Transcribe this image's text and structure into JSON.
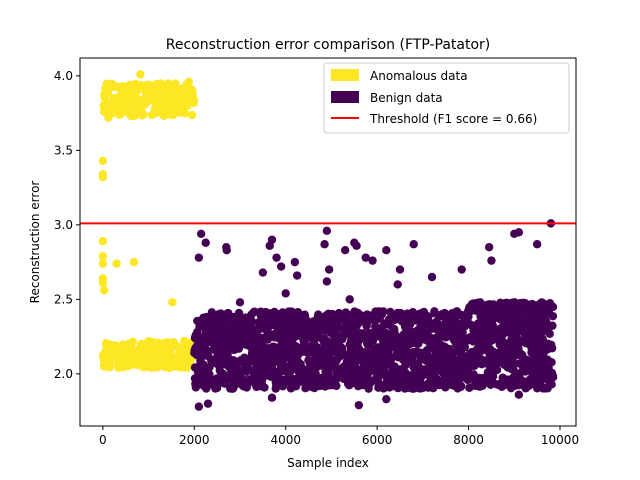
{
  "chart_data": {
    "type": "scatter",
    "title": "Reconstruction error comparison (FTP-Patator)",
    "xlabel": "Sample index",
    "ylabel": "Reconstruction error",
    "xlim": [
      -500,
      10350
    ],
    "ylim": [
      1.65,
      4.12
    ],
    "xticks": [
      0,
      2000,
      4000,
      6000,
      8000,
      10000
    ],
    "xtick_labels": [
      "0",
      "2000",
      "4000",
      "6000",
      "8000",
      "10000"
    ],
    "yticks": [
      2.0,
      2.5,
      3.0,
      3.5,
      4.0
    ],
    "ytick_labels": [
      "2.0",
      "2.5",
      "3.0",
      "3.5",
      "4.0"
    ],
    "grid": false,
    "legend_position": "top-right",
    "series": [
      {
        "name": "Anomalous data",
        "color": "#fde725",
        "clusters": [
          {
            "x_range": [
              0,
              2000
            ],
            "y_range": [
              3.73,
              3.95
            ],
            "count": 220
          },
          {
            "x_range": [
              0,
              2000
            ],
            "y_range": [
              2.04,
              2.22
            ],
            "count": 240
          }
        ],
        "points": [
          {
            "x": 0,
            "y": 3.43
          },
          {
            "x": 0,
            "y": 3.34
          },
          {
            "x": 0,
            "y": 3.32
          },
          {
            "x": 0,
            "y": 2.89
          },
          {
            "x": 0,
            "y": 2.79
          },
          {
            "x": 0,
            "y": 2.74
          },
          {
            "x": 0,
            "y": 2.64
          },
          {
            "x": 0,
            "y": 2.61
          },
          {
            "x": 30,
            "y": 2.56
          },
          {
            "x": 300,
            "y": 2.74
          },
          {
            "x": 680,
            "y": 2.75
          },
          {
            "x": 1520,
            "y": 2.48
          },
          {
            "x": 820,
            "y": 4.01
          },
          {
            "x": 1880,
            "y": 3.96
          },
          {
            "x": 120,
            "y": 3.72
          }
        ]
      },
      {
        "name": "Benign data",
        "color": "#440154",
        "clusters": [
          {
            "x_range": [
              2000,
              9850
            ],
            "y_range": [
              1.9,
              2.42
            ],
            "count": 1800
          },
          {
            "x_range": [
              8000,
              9850
            ],
            "y_range": [
              2.42,
              2.48
            ],
            "count": 120
          }
        ],
        "points": [
          {
            "x": 2150,
            "y": 2.94
          },
          {
            "x": 2250,
            "y": 2.88
          },
          {
            "x": 2100,
            "y": 2.78
          },
          {
            "x": 2700,
            "y": 2.85
          },
          {
            "x": 2710,
            "y": 2.83
          },
          {
            "x": 3500,
            "y": 2.68
          },
          {
            "x": 3650,
            "y": 2.86
          },
          {
            "x": 3700,
            "y": 2.9
          },
          {
            "x": 3800,
            "y": 2.78
          },
          {
            "x": 3900,
            "y": 2.72
          },
          {
            "x": 4250,
            "y": 2.66
          },
          {
            "x": 4200,
            "y": 2.75
          },
          {
            "x": 4900,
            "y": 2.96
          },
          {
            "x": 4850,
            "y": 2.87
          },
          {
            "x": 4950,
            "y": 2.7
          },
          {
            "x": 4900,
            "y": 2.62
          },
          {
            "x": 5300,
            "y": 2.83
          },
          {
            "x": 5500,
            "y": 2.88
          },
          {
            "x": 5550,
            "y": 2.86
          },
          {
            "x": 5750,
            "y": 2.78
          },
          {
            "x": 5900,
            "y": 2.76
          },
          {
            "x": 6200,
            "y": 2.83
          },
          {
            "x": 6450,
            "y": 2.6
          },
          {
            "x": 6500,
            "y": 2.7
          },
          {
            "x": 6800,
            "y": 2.87
          },
          {
            "x": 7200,
            "y": 2.65
          },
          {
            "x": 7850,
            "y": 2.7
          },
          {
            "x": 8450,
            "y": 2.85
          },
          {
            "x": 8500,
            "y": 2.76
          },
          {
            "x": 9000,
            "y": 2.94
          },
          {
            "x": 9100,
            "y": 2.95
          },
          {
            "x": 9500,
            "y": 2.87
          },
          {
            "x": 9800,
            "y": 3.01
          },
          {
            "x": 2100,
            "y": 1.78
          },
          {
            "x": 2300,
            "y": 1.8
          },
          {
            "x": 5600,
            "y": 1.79
          },
          {
            "x": 3700,
            "y": 1.84
          },
          {
            "x": 6200,
            "y": 1.83
          },
          {
            "x": 9100,
            "y": 1.86
          },
          {
            "x": 5400,
            "y": 2.5
          },
          {
            "x": 4000,
            "y": 2.54
          },
          {
            "x": 3000,
            "y": 2.48
          }
        ]
      }
    ],
    "threshold": {
      "name": "Threshold (F1 score = 0.66)",
      "value": 3.01,
      "color": "#ff0000"
    }
  }
}
